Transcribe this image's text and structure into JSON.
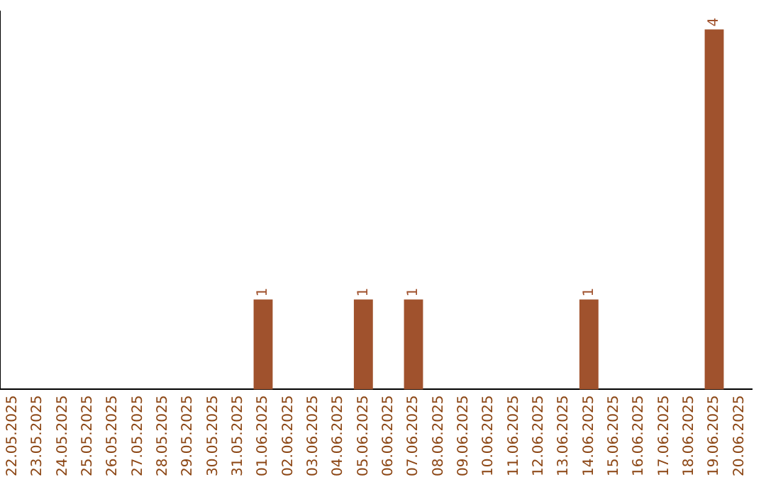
{
  "chart_data": {
    "type": "bar",
    "categories": [
      "22.05.2025",
      "23.05.2025",
      "24.05.2025",
      "25.05.2025",
      "26.05.2025",
      "27.05.2025",
      "28.05.2025",
      "29.05.2025",
      "30.05.2025",
      "31.05.2025",
      "01.06.2025",
      "02.06.2025",
      "03.06.2025",
      "04.06.2025",
      "05.06.2025",
      "06.06.2025",
      "07.06.2025",
      "08.06.2025",
      "09.06.2025",
      "10.06.2025",
      "11.06.2025",
      "12.06.2025",
      "13.06.2025",
      "14.06.2025",
      "15.06.2025",
      "16.06.2025",
      "17.06.2025",
      "18.06.2025",
      "19.06.2025",
      "20.06.2025"
    ],
    "values": [
      0,
      0,
      0,
      0,
      0,
      0,
      0,
      0,
      0,
      0,
      1,
      0,
      0,
      0,
      1,
      0,
      1,
      0,
      0,
      0,
      0,
      0,
      0,
      1,
      0,
      0,
      0,
      0,
      4,
      0
    ],
    "value_labels": [
      null,
      null,
      null,
      null,
      null,
      null,
      null,
      null,
      null,
      null,
      "1",
      null,
      null,
      null,
      "1",
      null,
      "1",
      null,
      null,
      null,
      null,
      null,
      null,
      "1",
      null,
      null,
      null,
      null,
      "4",
      null
    ],
    "color": "#a0522d",
    "ylim": [
      0,
      4.2
    ],
    "tick_labels": "x",
    "grid": false,
    "legend": false
  }
}
